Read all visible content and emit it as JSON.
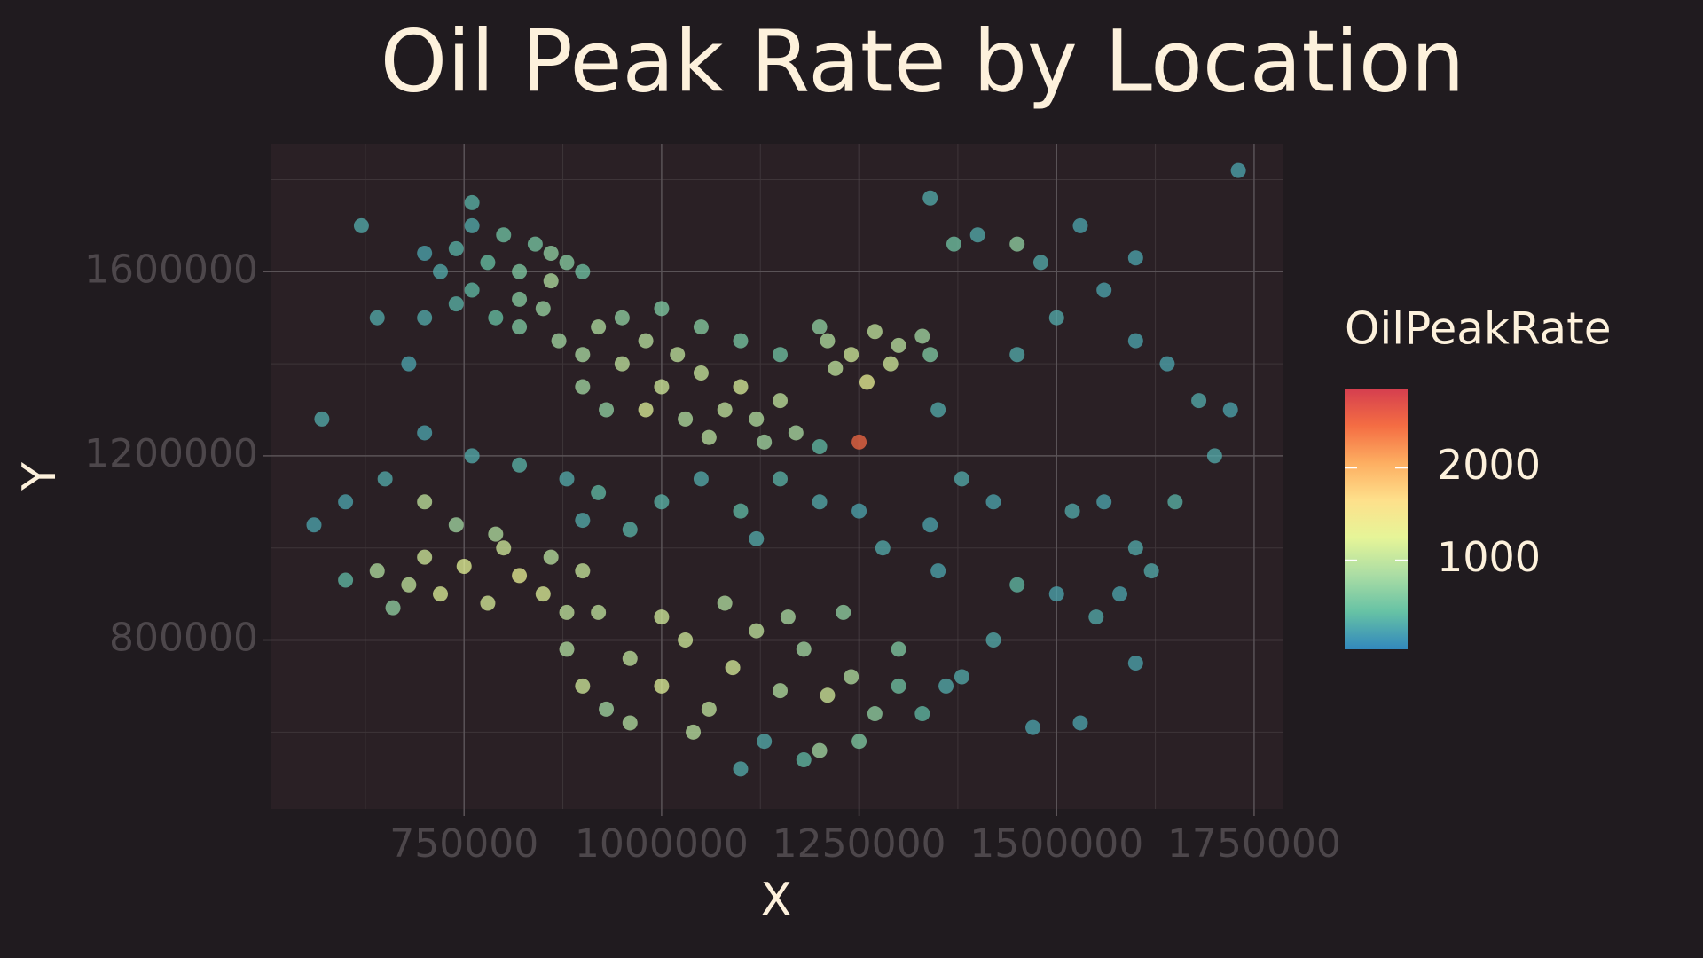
{
  "chart_data": {
    "type": "scatter",
    "title": "Oil Peak Rate by Location",
    "x_label": "X",
    "y_label": "Y",
    "colorbar_title": "OilPeakRate",
    "xlim": [
      505000,
      1786000
    ],
    "ylim": [
      433000,
      1878000
    ],
    "xticks": [
      750000,
      1000000,
      1250000,
      1500000,
      1750000
    ],
    "yticks": [
      800000,
      1200000,
      1600000
    ],
    "minor_xticks": [
      625000,
      875000,
      1125000,
      1375000,
      1625000
    ],
    "minor_yticks": [
      600000,
      1000000,
      1400000,
      1800000
    ],
    "grid": true,
    "clim": [
      35,
      2860
    ],
    "cticks": [
      1000,
      2000
    ],
    "colormap": [
      "#3288bd",
      "#66c2a5",
      "#abdda4",
      "#e6f598",
      "#fee08b",
      "#fdae61",
      "#f46d43",
      "#d53e4f"
    ],
    "x": [
      740000,
      760000,
      780000,
      800000,
      820000,
      840000,
      860000,
      880000,
      900000,
      760000,
      790000,
      820000,
      850000,
      870000,
      900000,
      720000,
      700000,
      820000,
      860000,
      740000,
      920000,
      950000,
      980000,
      1000000,
      1020000,
      1050000,
      1080000,
      1100000,
      1120000,
      1150000,
      1170000,
      950000,
      1000000,
      1050000,
      1100000,
      1150000,
      980000,
      1030000,
      900000,
      930000,
      1060000,
      1130000,
      1210000,
      1240000,
      1270000,
      1300000,
      1330000,
      1220000,
      1260000,
      1290000,
      1200000,
      1340000,
      700000,
      760000,
      820000,
      880000,
      920000,
      1000000,
      1050000,
      1100000,
      1150000,
      1200000,
      1250000,
      1280000,
      1340000,
      650000,
      900000,
      960000,
      1120000,
      1200000,
      1250000,
      640000,
      680000,
      700000,
      720000,
      750000,
      780000,
      800000,
      820000,
      850000,
      880000,
      900000,
      740000,
      790000,
      660000,
      600000,
      700000,
      860000,
      880000,
      900000,
      930000,
      960000,
      1000000,
      1030000,
      1060000,
      1090000,
      1120000,
      1150000,
      1180000,
      1210000,
      1240000,
      1270000,
      1300000,
      920000,
      1000000,
      1080000,
      1160000,
      1230000,
      960000,
      1040000,
      1200000,
      1250000,
      1330000,
      1360000,
      1300000,
      1130000,
      1180000,
      1100000,
      1400000,
      1450000,
      1480000,
      1530000,
      1560000,
      1600000,
      1450000,
      1500000,
      1640000,
      1680000,
      1720000,
      1700000,
      1650000,
      1600000,
      1580000,
      1620000,
      1550000,
      1600000,
      1500000,
      1450000,
      1420000,
      1380000,
      1350000,
      1420000,
      1380000,
      1470000,
      1530000,
      1600000,
      1730000,
      1340000,
      1370000,
      1350000,
      1520000,
      1560000,
      560000,
      570000,
      620000,
      600000,
      640000,
      680000,
      700000,
      760000
    ],
    "y": [
      1650000,
      1700000,
      1620000,
      1680000,
      1600000,
      1660000,
      1640000,
      1620000,
      1600000,
      1560000,
      1500000,
      1480000,
      1520000,
      1450000,
      1420000,
      1600000,
      1640000,
      1540000,
      1580000,
      1530000,
      1480000,
      1400000,
      1450000,
      1350000,
      1420000,
      1380000,
      1300000,
      1350000,
      1280000,
      1320000,
      1250000,
      1500000,
      1520000,
      1480000,
      1450000,
      1420000,
      1300000,
      1280000,
      1350000,
      1300000,
      1240000,
      1230000,
      1450000,
      1420000,
      1470000,
      1440000,
      1460000,
      1390000,
      1360000,
      1400000,
      1480000,
      1420000,
      1250000,
      1200000,
      1180000,
      1150000,
      1120000,
      1100000,
      1150000,
      1080000,
      1150000,
      1100000,
      1080000,
      1000000,
      1050000,
      1150000,
      1060000,
      1040000,
      1020000,
      1220000,
      1230000,
      950000,
      920000,
      980000,
      900000,
      960000,
      880000,
      1000000,
      940000,
      900000,
      860000,
      950000,
      1050000,
      1030000,
      870000,
      930000,
      1100000,
      980000,
      780000,
      700000,
      650000,
      760000,
      700000,
      800000,
      650000,
      740000,
      820000,
      690000,
      780000,
      680000,
      720000,
      640000,
      780000,
      860000,
      850000,
      880000,
      850000,
      860000,
      620000,
      600000,
      560000,
      580000,
      640000,
      700000,
      700000,
      580000,
      540000,
      520000,
      1680000,
      1660000,
      1620000,
      1700000,
      1560000,
      1450000,
      1420000,
      1500000,
      1400000,
      1320000,
      1300000,
      1200000,
      1100000,
      1000000,
      900000,
      950000,
      850000,
      750000,
      900000,
      920000,
      1100000,
      1150000,
      950000,
      800000,
      720000,
      610000,
      620000,
      1630000,
      1820000,
      1760000,
      1660000,
      1300000,
      1080000,
      1100000,
      1050000,
      1280000,
      1700000,
      1100000,
      1500000,
      1400000,
      1500000,
      1750000
    ],
    "values": [
      350,
      300,
      450,
      500,
      600,
      550,
      700,
      650,
      500,
      400,
      450,
      600,
      750,
      800,
      850,
      300,
      250,
      650,
      900,
      350,
      900,
      1000,
      950,
      1100,
      1000,
      1050,
      1000,
      1150,
      900,
      1000,
      850,
      700,
      600,
      650,
      550,
      500,
      1200,
      900,
      800,
      700,
      950,
      800,
      900,
      1100,
      1000,
      950,
      800,
      1000,
      1300,
      1100,
      700,
      600,
      250,
      300,
      350,
      300,
      400,
      350,
      300,
      400,
      350,
      300,
      250,
      300,
      250,
      300,
      300,
      350,
      300,
      400,
      2500,
      900,
      1000,
      1100,
      1200,
      1250,
      1150,
      1100,
      1300,
      1200,
      1000,
      1050,
      800,
      900,
      700,
      400,
      1000,
      950,
      900,
      1100,
      800,
      1000,
      1200,
      1100,
      1000,
      1150,
      1000,
      900,
      800,
      1100,
      900,
      700,
      600,
      1000,
      1100,
      900,
      850,
      700,
      900,
      950,
      800,
      600,
      400,
      300,
      500,
      300,
      400,
      300,
      300,
      700,
      300,
      250,
      250,
      250,
      300,
      300,
      250,
      300,
      250,
      300,
      350,
      300,
      250,
      300,
      300,
      250,
      250,
      400,
      250,
      300,
      250,
      300,
      300,
      250,
      250,
      250,
      250,
      300,
      500,
      300,
      300,
      250,
      250,
      300,
      300,
      250,
      300,
      250,
      300,
      350
    ]
  }
}
